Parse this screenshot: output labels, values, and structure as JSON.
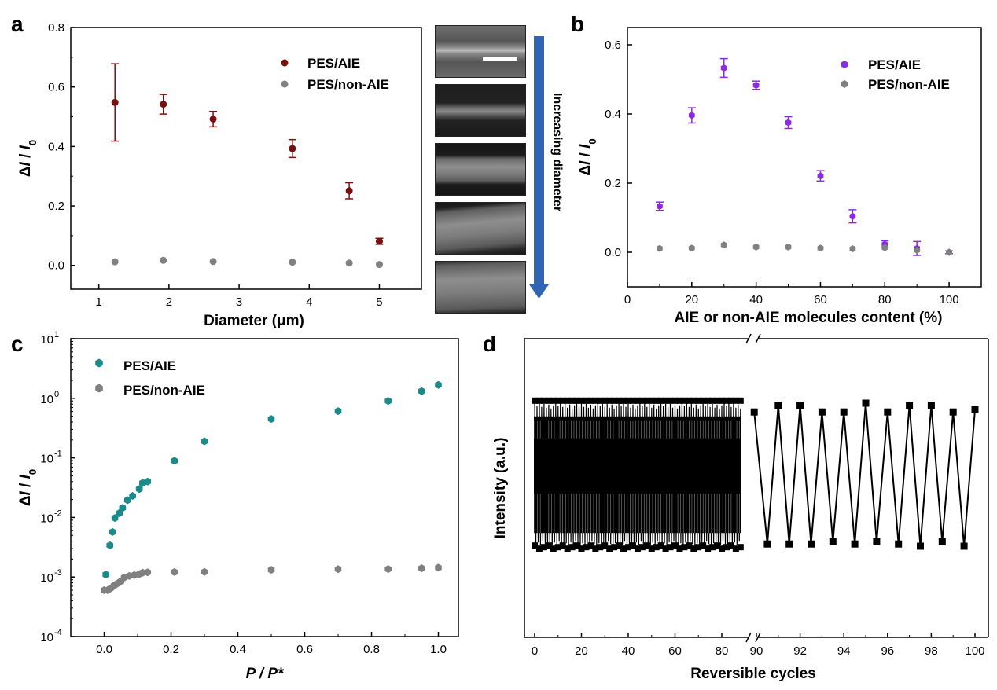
{
  "chart_data": [
    {
      "panel": "a",
      "type": "scatter",
      "xlabel": "Diameter (μm)",
      "ylabel": "ΔI / I0",
      "xlim": [
        0.6,
        5.6
      ],
      "ylim": [
        -0.08,
        0.8
      ],
      "xticks": [
        "1",
        "2",
        "3",
        "4",
        "5"
      ],
      "yticks": [
        "0.0",
        "0.2",
        "0.4",
        "0.6",
        "0.8"
      ],
      "legend": [
        "PES/AIE",
        "PES/non-AIE"
      ],
      "series": [
        {
          "name": "PES/AIE",
          "color": "#7a0f0f",
          "x": [
            1.23,
            1.92,
            2.63,
            3.76,
            4.57,
            5.0
          ],
          "y": [
            0.548,
            0.542,
            0.492,
            0.393,
            0.251,
            0.081
          ],
          "err": [
            0.13,
            0.033,
            0.026,
            0.03,
            0.027,
            0.01
          ]
        },
        {
          "name": "PES/non-AIE",
          "color": "#808080",
          "x": [
            1.23,
            1.92,
            2.63,
            3.76,
            4.57,
            5.0
          ],
          "y": [
            0.012,
            0.017,
            0.013,
            0.011,
            0.008,
            0.003
          ],
          "err": [
            0,
            0,
            0,
            0,
            0,
            0
          ]
        }
      ],
      "inset_caption": "Increasing diameter"
    },
    {
      "panel": "b",
      "type": "scatter",
      "xlabel": "AIE or non-AIE molecules content (%)",
      "ylabel": "ΔI / I0",
      "xlim": [
        0,
        110
      ],
      "ylim": [
        -0.1,
        0.65
      ],
      "xticks": [
        "0",
        "20",
        "40",
        "60",
        "80",
        "100"
      ],
      "yticks": [
        "0.0",
        "0.2",
        "0.4",
        "0.6"
      ],
      "legend": [
        "PES/AIE",
        "PES/non-AIE"
      ],
      "series": [
        {
          "name": "PES/AIE",
          "color": "#8a2be2",
          "x": [
            10,
            20,
            30,
            40,
            50,
            60,
            70,
            80,
            90,
            100
          ],
          "y": [
            0.133,
            0.396,
            0.533,
            0.483,
            0.375,
            0.221,
            0.104,
            0.023,
            0.011,
            0.0
          ],
          "err": [
            0.012,
            0.022,
            0.027,
            0.012,
            0.017,
            0.015,
            0.019,
            0.01,
            0.02,
            0.004
          ]
        },
        {
          "name": "PES/non-AIE",
          "color": "#808080",
          "x": [
            10,
            20,
            30,
            40,
            50,
            60,
            70,
            80,
            90,
            100
          ],
          "y": [
            0.011,
            0.012,
            0.021,
            0.015,
            0.015,
            0.012,
            0.01,
            0.013,
            0.006,
            0.0
          ],
          "err": [
            0,
            0,
            0,
            0,
            0,
            0,
            0,
            0,
            0,
            0
          ]
        }
      ]
    },
    {
      "panel": "c",
      "type": "scatter",
      "yscale": "log",
      "xlabel": "P / P*",
      "ylabel": "ΔI / I0",
      "xlim": [
        -0.1,
        1.06
      ],
      "ylim_log10": [
        -4,
        1
      ],
      "xticks": [
        "0.0",
        "0.2",
        "0.4",
        "0.6",
        "0.8",
        "1.0"
      ],
      "yticks": [
        "10",
        "10",
        "10",
        "10",
        "10",
        "10"
      ],
      "ytick_exponents": [
        "-4",
        "-3",
        "-2",
        "-1",
        "0",
        "1"
      ],
      "legend": [
        "PES/AIE",
        "PES/non-AIE"
      ],
      "series": [
        {
          "name": "PES/AIE",
          "color": "#1a8a8a",
          "x": [
            0.005,
            0.017,
            0.025,
            0.032,
            0.045,
            0.055,
            0.07,
            0.085,
            0.105,
            0.115,
            0.13,
            0.21,
            0.3,
            0.5,
            0.7,
            0.85,
            0.95,
            1.0
          ],
          "y": [
            0.0011,
            0.0034,
            0.0057,
            0.0098,
            0.0118,
            0.0145,
            0.0195,
            0.023,
            0.03,
            0.038,
            0.04,
            0.089,
            0.19,
            0.45,
            0.61,
            0.9,
            1.32,
            1.68
          ]
        },
        {
          "name": "PES/non-AIE",
          "color": "#808080",
          "x": [
            0.0,
            0.01,
            0.02,
            0.03,
            0.04,
            0.05,
            0.06,
            0.075,
            0.09,
            0.105,
            0.115,
            0.13,
            0.21,
            0.3,
            0.5,
            0.7,
            0.85,
            0.95,
            1.0
          ],
          "y": [
            0.0006,
            0.0006,
            0.00065,
            0.00072,
            0.00078,
            0.00085,
            0.00098,
            0.00104,
            0.00108,
            0.00112,
            0.00118,
            0.0012,
            0.00121,
            0.00122,
            0.00132,
            0.00135,
            0.00136,
            0.0014,
            0.00143
          ]
        }
      ]
    },
    {
      "panel": "d",
      "type": "line",
      "xlabel": "Reversible cycles",
      "ylabel": "Intensity (a.u.)",
      "segment1_xlim": [
        -2,
        88
      ],
      "segment2_xlim": [
        89.8,
        100.3
      ],
      "xticks_left": [
        "0",
        "20",
        "40",
        "60",
        "80"
      ],
      "xticks_right": [
        "90",
        "92",
        "94",
        "96",
        "98",
        "100"
      ],
      "ylim": [
        0,
        1
      ],
      "high_level": 0.84,
      "low_level": 0.21,
      "right_points_x": [
        89.9,
        90.5,
        91.0,
        91.5,
        92.0,
        92.5,
        93.0,
        93.5,
        94.0,
        94.5,
        95.0,
        95.5,
        96.0,
        96.5,
        97.0,
        97.5,
        98.0,
        98.5,
        99.0,
        99.5,
        100.0
      ],
      "right_points_y": [
        0.81,
        0.21,
        0.84,
        0.21,
        0.84,
        0.21,
        0.81,
        0.22,
        0.81,
        0.21,
        0.85,
        0.22,
        0.81,
        0.21,
        0.84,
        0.2,
        0.84,
        0.22,
        0.81,
        0.2,
        0.82
      ]
    }
  ]
}
